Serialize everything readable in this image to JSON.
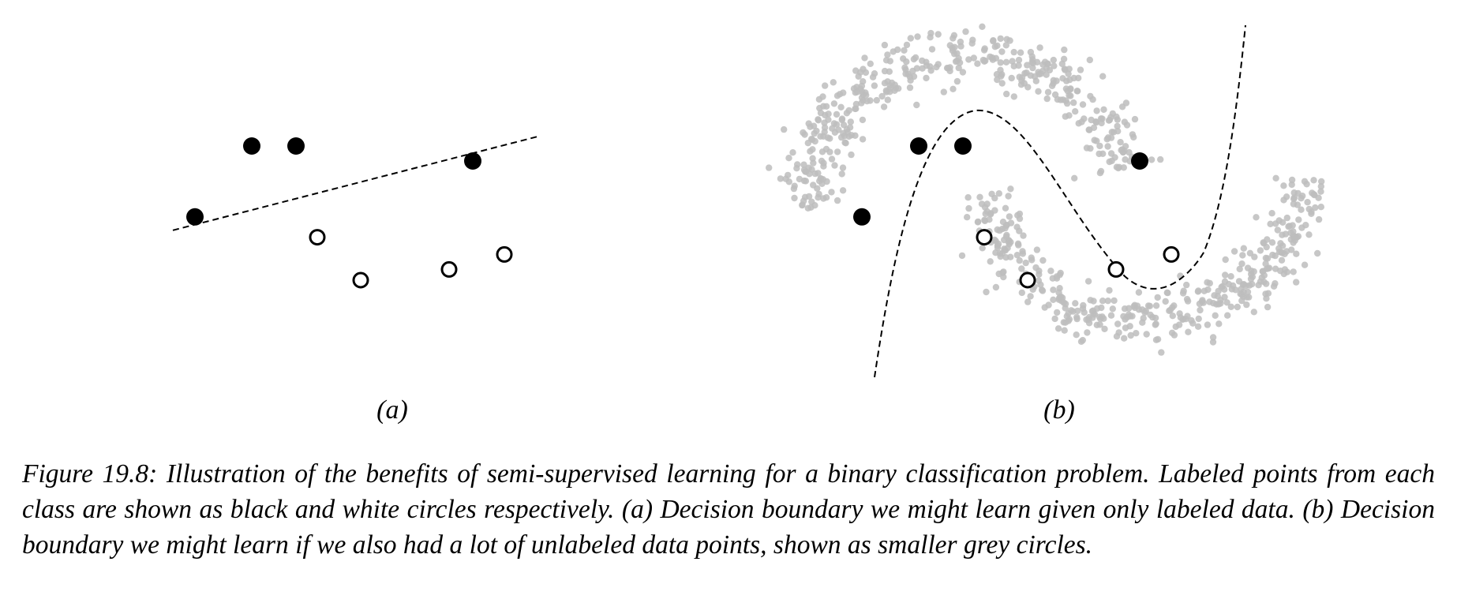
{
  "panels": [
    {
      "label": "(a)",
      "labeled_black": [
        [
          0.72,
          1.0
        ],
        [
          1.28,
          1.0
        ],
        [
          3.52,
          0.72
        ],
        [
          0.0,
          -0.32
        ]
      ],
      "labeled_white": [
        [
          1.55,
          -0.7
        ],
        [
          2.1,
          -1.5
        ],
        [
          3.22,
          -1.3
        ],
        [
          3.92,
          -1.02
        ]
      ],
      "boundary": [
        [
          -0.28,
          -0.57
        ],
        [
          4.35,
          1.18
        ]
      ]
    },
    {
      "label": "(b)",
      "labeled_black": [
        [
          0.72,
          1.0
        ],
        [
          1.28,
          1.0
        ],
        [
          3.52,
          0.72
        ],
        [
          0.0,
          -0.32
        ]
      ],
      "labeled_white": [
        [
          1.55,
          -0.7
        ],
        [
          2.1,
          -1.5
        ],
        [
          3.22,
          -1.3
        ],
        [
          3.92,
          -1.02
        ]
      ],
      "unlabeled_description": "two interleaving moons"
    }
  ],
  "caption": "Figure 19.8: Illustration of the benefits of semi-supervised learning for a binary classification problem. Labeled points from each class are shown as black and white circles respectively. (a) Decision boundary we might learn given only labeled data. (b) Decision boundary we might learn if we also had a lot of unlabeled data points, shown as smaller grey circles.",
  "colors": {
    "labeled_black": "#000000",
    "labeled_white": "#ffffff",
    "unlabeled": "#bdbdbd",
    "boundary": "#000000"
  }
}
